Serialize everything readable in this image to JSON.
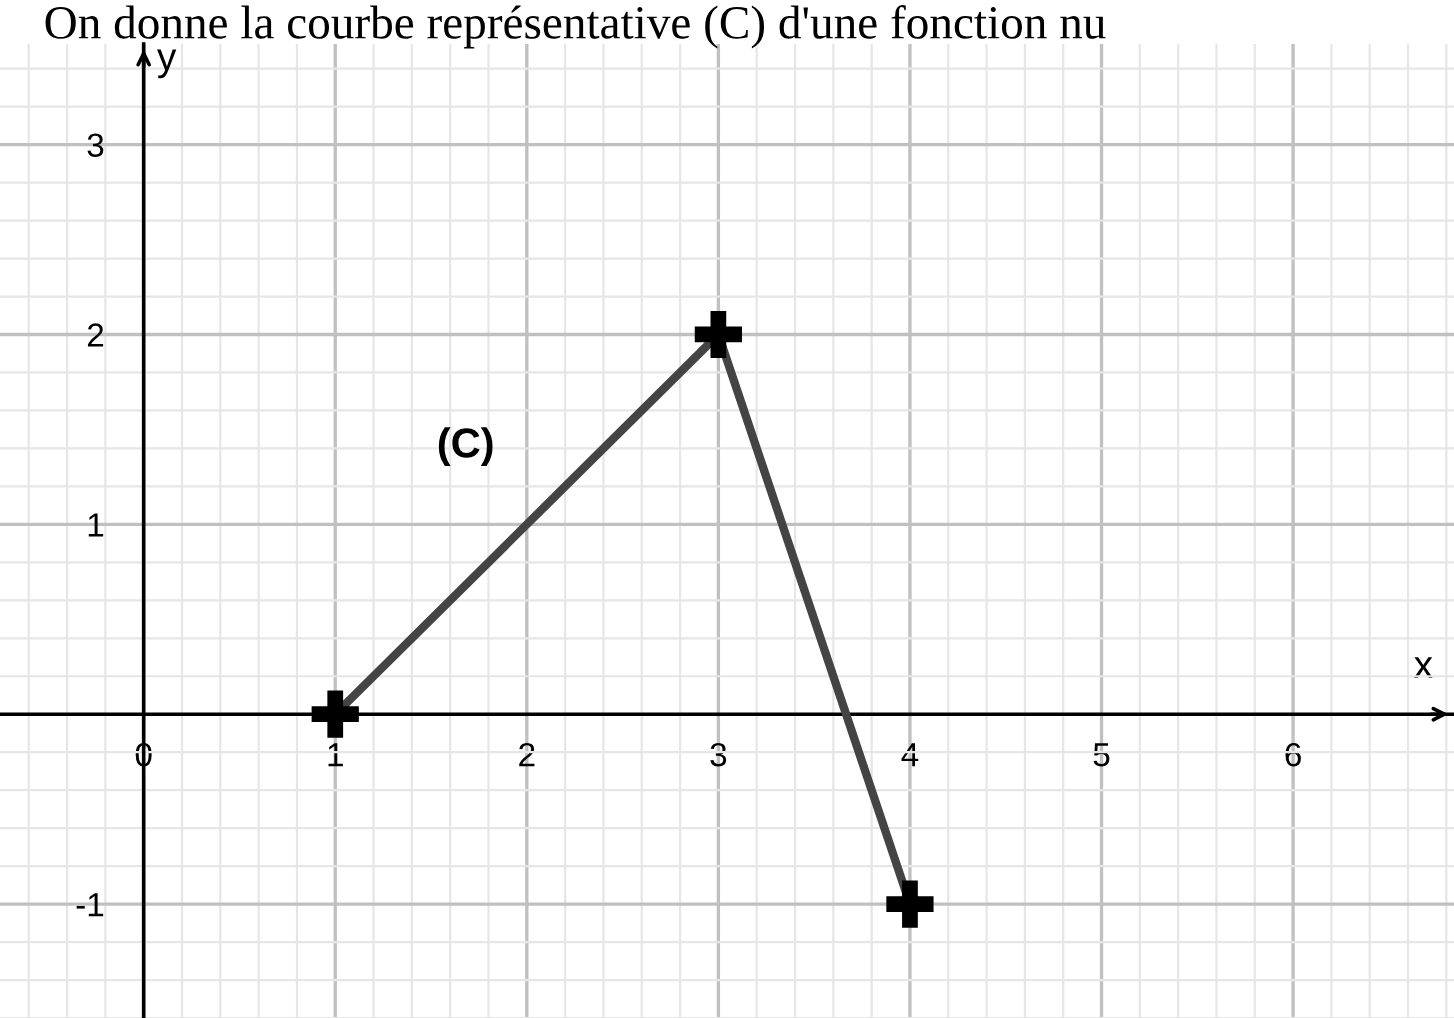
{
  "chart_data": {
    "type": "line",
    "title": "On donne la courbe représentative (C) d'une fonction nu",
    "xlabel": "x",
    "ylabel": "y",
    "x": [
      1,
      3,
      4
    ],
    "series": [
      {
        "name": "(C)",
        "color": "#444444",
        "values": [
          0,
          2,
          -1
        ]
      }
    ],
    "xlim": [
      -0.75,
      6.84
    ],
    "ylim": [
      -1.6,
      3.53
    ],
    "xticks": [
      0,
      1,
      2,
      3,
      4,
      5,
      6
    ],
    "yticks": [
      -1,
      1,
      2,
      3
    ],
    "grid": true,
    "marker": "cross",
    "line_style": "solid"
  }
}
